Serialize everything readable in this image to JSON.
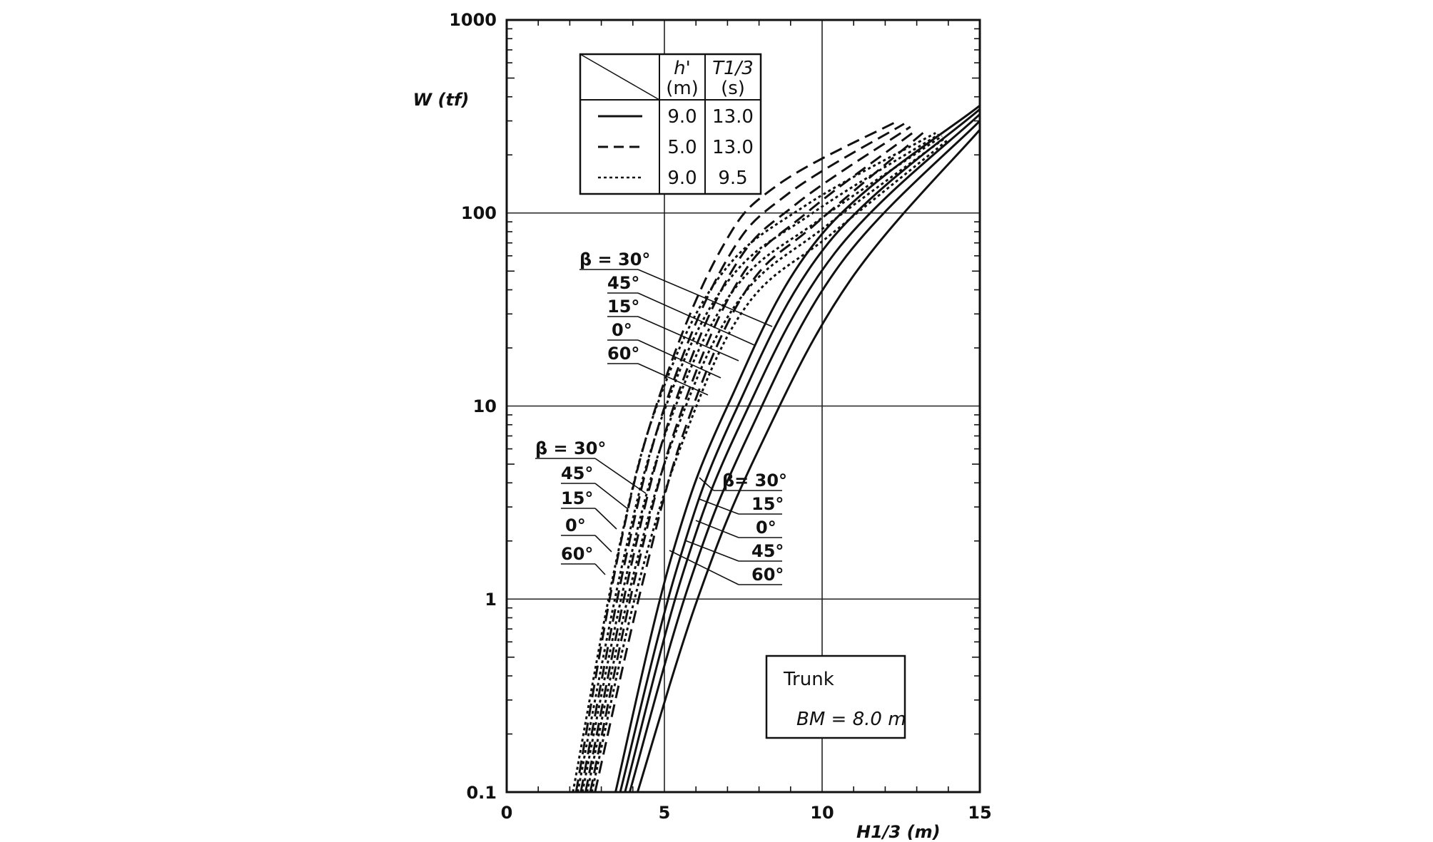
{
  "chart_data": {
    "type": "line",
    "title": "",
    "xlabel": "H1/3 (m)",
    "ylabel": "W (tf)",
    "x_scale": "linear",
    "y_scale": "log",
    "xlim": [
      0,
      15
    ],
    "ylim": [
      0.1,
      1000
    ],
    "grid": true,
    "x_ticks": [
      "0",
      "5",
      "10",
      "15"
    ],
    "y_ticks": [
      "0.1",
      "1",
      "10",
      "100",
      "1000"
    ],
    "legend": {
      "placement": "top-center",
      "header_h": "h'",
      "header_h_unit": "(m)",
      "header_t": "T1/3",
      "header_t_unit": "(s)",
      "rows": [
        {
          "style": "solid",
          "h": "9.0",
          "t": "13.0"
        },
        {
          "style": "dashed",
          "h": "5.0",
          "t": "13.0"
        },
        {
          "style": "dotted",
          "h": "9.0",
          "t": "9.5"
        }
      ]
    },
    "annotation_box": {
      "line1": "Trunk",
      "line2": "BM = 8.0 m"
    },
    "label_groups": [
      {
        "group": "dashed",
        "labels": [
          "β = 30°",
          "45°",
          "15°",
          "0°",
          "60°"
        ]
      },
      {
        "group": "dotted",
        "labels": [
          "β = 30°",
          "45°",
          "15°",
          "0°",
          "60°"
        ]
      },
      {
        "group": "solid",
        "labels": [
          "β= 30°",
          "15°",
          "0°",
          "45°",
          "60°"
        ]
      }
    ],
    "series": [
      {
        "name": "solid β=30°",
        "style": "solid",
        "x": [
          3.45,
          5.2,
          7.0,
          10.0,
          15.0
        ],
        "y": [
          0.1,
          1.6,
          10,
          78,
          360
        ]
      },
      {
        "name": "solid β=15°",
        "style": "solid",
        "x": [
          3.6,
          5.4,
          7.2,
          10.2,
          15.0
        ],
        "y": [
          0.1,
          1.45,
          9,
          70,
          345
        ]
      },
      {
        "name": "solid β=0°",
        "style": "solid",
        "x": [
          3.75,
          5.55,
          7.4,
          10.4,
          15.0
        ],
        "y": [
          0.1,
          1.3,
          8,
          62,
          325
        ]
      },
      {
        "name": "solid β=45°",
        "style": "solid",
        "x": [
          3.9,
          5.75,
          7.65,
          10.6,
          15.0
        ],
        "y": [
          0.1,
          1.15,
          7,
          55,
          300
        ]
      },
      {
        "name": "solid β=60°",
        "style": "solid",
        "x": [
          4.15,
          6.05,
          8.0,
          10.9,
          15.0
        ],
        "y": [
          0.1,
          1.0,
          6,
          45,
          270
        ]
      },
      {
        "name": "dashed β=30°",
        "style": "dashed",
        "x": [
          2.2,
          3.6,
          4.9,
          6.8,
          8.6,
          12.4
        ],
        "y": [
          0.1,
          1.9,
          12,
          65,
          140,
          300
        ]
      },
      {
        "name": "dashed β=45°",
        "style": "dashed",
        "x": [
          2.35,
          3.8,
          5.1,
          7.0,
          8.9,
          12.6
        ],
        "y": [
          0.1,
          1.7,
          11,
          58,
          125,
          290
        ]
      },
      {
        "name": "dashed β=15°",
        "style": "dashed",
        "x": [
          2.5,
          3.95,
          5.3,
          7.2,
          9.2,
          12.8
        ],
        "y": [
          0.1,
          1.5,
          10,
          52,
          112,
          280
        ]
      },
      {
        "name": "dashed β=0°",
        "style": "dashed",
        "x": [
          2.65,
          4.1,
          5.5,
          7.4,
          9.5,
          13.0
        ],
        "y": [
          0.1,
          1.35,
          9,
          46,
          100,
          270
        ]
      },
      {
        "name": "dashed β=60°",
        "style": "dashed",
        "x": [
          2.8,
          4.3,
          5.7,
          7.6,
          9.8,
          13.2
        ],
        "y": [
          0.1,
          1.2,
          8,
          40,
          88,
          260
        ]
      },
      {
        "name": "dotted β=30°",
        "style": "dotted",
        "x": [
          2.1,
          3.55,
          4.85,
          6.8,
          9.5,
          13.6
        ],
        "y": [
          0.1,
          1.8,
          11,
          48,
          110,
          260
        ]
      },
      {
        "name": "dotted β=45°",
        "style": "dotted",
        "x": [
          2.25,
          3.7,
          5.05,
          7.0,
          9.7,
          13.7
        ],
        "y": [
          0.1,
          1.6,
          10,
          44,
          100,
          255
        ]
      },
      {
        "name": "dotted β=15°",
        "style": "dotted",
        "x": [
          2.4,
          3.85,
          5.25,
          7.2,
          9.9,
          13.8
        ],
        "y": [
          0.1,
          1.45,
          9,
          40,
          92,
          250
        ]
      },
      {
        "name": "dotted β=0°",
        "style": "dotted",
        "x": [
          2.55,
          4.0,
          5.45,
          7.4,
          10.1,
          13.9
        ],
        "y": [
          0.1,
          1.3,
          8,
          36,
          85,
          245
        ]
      },
      {
        "name": "dotted β=60°",
        "style": "dotted",
        "x": [
          2.7,
          4.15,
          5.65,
          7.6,
          10.3,
          14.0
        ],
        "y": [
          0.1,
          1.15,
          7,
          33,
          78,
          240
        ]
      }
    ]
  }
}
